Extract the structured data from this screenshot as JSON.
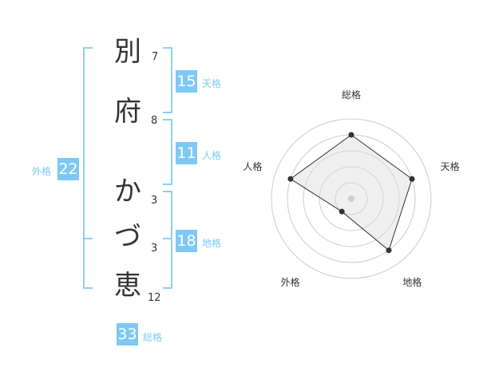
{
  "name": {
    "characters": [
      {
        "char": "別",
        "strokes": "7"
      },
      {
        "char": "府",
        "strokes": "8"
      },
      {
        "char": "か",
        "strokes": "3"
      },
      {
        "char": "づ",
        "strokes": "3"
      },
      {
        "char": "恵",
        "strokes": "12"
      }
    ]
  },
  "fortunes": {
    "tenkaku": {
      "label": "天格",
      "value": "15"
    },
    "jinkaku": {
      "label": "人格",
      "value": "11"
    },
    "chikaku": {
      "label": "地格",
      "value": "18"
    },
    "gaikaku": {
      "label": "外格",
      "value": "22"
    },
    "soukaku": {
      "label": "総格",
      "value": "33"
    }
  },
  "colors": {
    "accent": "#7dc8f5",
    "text": "#333333"
  },
  "chart_data": {
    "type": "radar",
    "axes": [
      "総格",
      "天格",
      "地格",
      "外格",
      "人格"
    ],
    "values": [
      4,
      4,
      4,
      1,
      4
    ],
    "range": [
      0,
      5
    ],
    "rings": 5
  }
}
